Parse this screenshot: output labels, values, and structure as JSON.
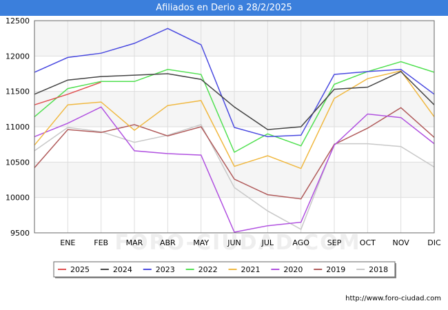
{
  "chart_data": {
    "type": "line",
    "title": "Afiliados en Derio a 28/2/2025",
    "categories": [
      "",
      "ENE",
      "FEB",
      "MAR",
      "ABR",
      "MAY",
      "JUN",
      "JUL",
      "AGO",
      "SEP",
      "OCT",
      "NOV",
      "DIC"
    ],
    "ylim": [
      9500,
      12500
    ],
    "yticks": [
      9500,
      10000,
      10500,
      11000,
      11500,
      12000,
      12500
    ],
    "grid": true,
    "legend_position": "bottom",
    "series": [
      {
        "name": "2025",
        "color": "#e05050",
        "values": [
          11310,
          11460,
          11630,
          null,
          null,
          null,
          null,
          null,
          null,
          null,
          null,
          null,
          null
        ]
      },
      {
        "name": "2024",
        "color": "#444444",
        "values": [
          11460,
          11660,
          11710,
          11730,
          11750,
          11670,
          11280,
          10960,
          11000,
          11530,
          11560,
          11780,
          11310
        ]
      },
      {
        "name": "2023",
        "color": "#4a4ae0",
        "values": [
          11770,
          11980,
          12040,
          12180,
          12390,
          12160,
          10990,
          10860,
          10880,
          11740,
          11780,
          11810,
          11460
        ]
      },
      {
        "name": "2022",
        "color": "#50e050",
        "values": [
          11140,
          11540,
          11640,
          11640,
          11810,
          11740,
          10640,
          10900,
          10730,
          11600,
          11780,
          11920,
          11770
        ]
      },
      {
        "name": "2021",
        "color": "#f0b840",
        "values": [
          10740,
          11310,
          11350,
          10950,
          11300,
          11370,
          10440,
          10590,
          10410,
          11400,
          11680,
          11790,
          11140
        ]
      },
      {
        "name": "2020",
        "color": "#b050e0",
        "values": [
          10860,
          11050,
          11280,
          10660,
          10620,
          10600,
          9510,
          9600,
          9650,
          10740,
          11180,
          11130,
          10760
        ]
      },
      {
        "name": "2019",
        "color": "#b05a5a",
        "values": [
          10420,
          10960,
          10920,
          11030,
          10870,
          11000,
          10260,
          10040,
          9980,
          10750,
          10980,
          11270,
          10850
        ]
      },
      {
        "name": "2018",
        "color": "#c8c8c8",
        "values": [
          10660,
          10990,
          10930,
          10780,
          10880,
          11030,
          10140,
          9810,
          9550,
          10760,
          10760,
          10720,
          10430
        ]
      }
    ]
  },
  "footer": {
    "url": "http://www.foro-ciudad.com"
  },
  "watermark": "FORO-CIUDAD.COM"
}
